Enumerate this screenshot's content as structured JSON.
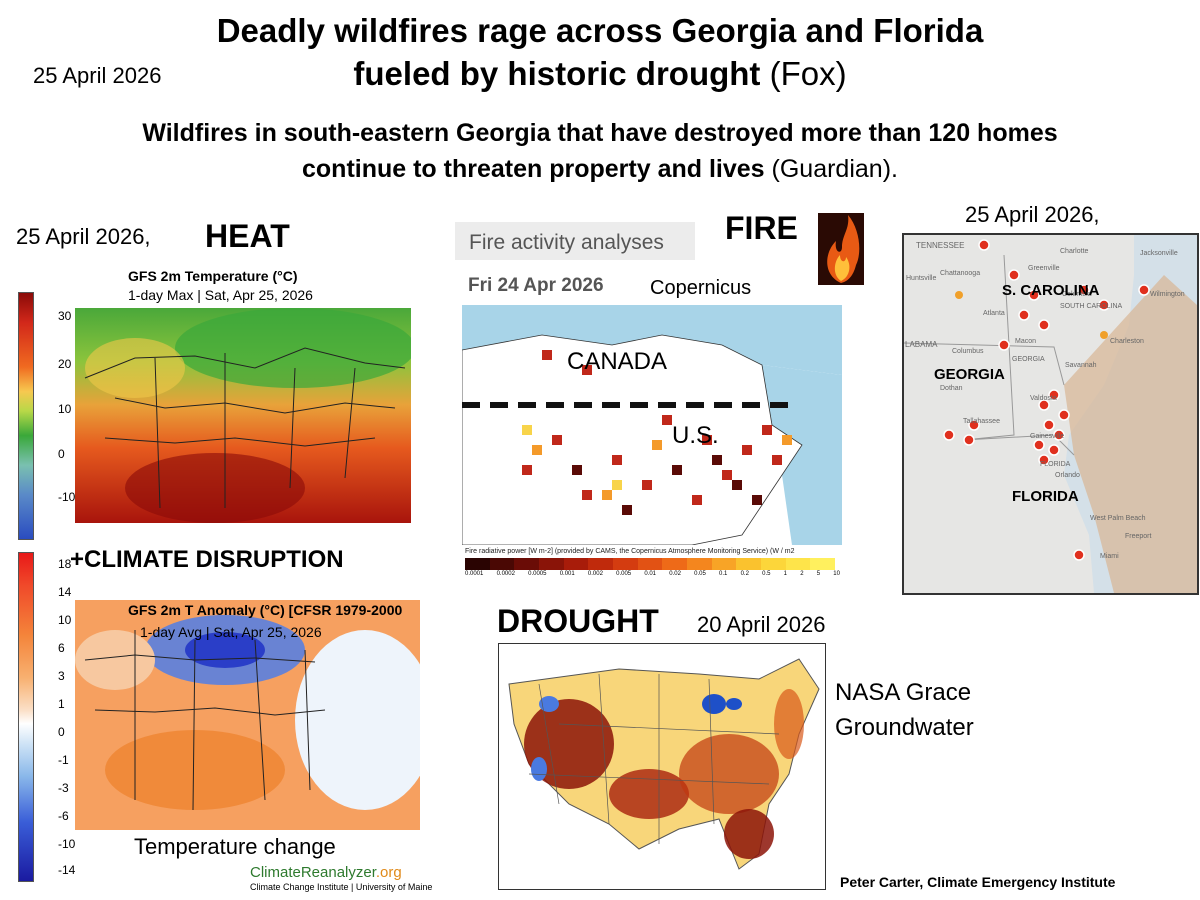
{
  "header": {
    "title_line1": "Deadly wildfires rage across Georgia and Florida",
    "title_line2": "fueled by historic drought",
    "title_source": "(Fox)",
    "date_top": "25 April 2026",
    "subtitle_line1": "Wildfires in south-eastern Georgia that have destroyed more than 120 homes",
    "subtitle_line2": "continue to threaten property and lives",
    "subtitle_source": "(Guardian)."
  },
  "heat_panel": {
    "date": "25 April 2026,",
    "label": "HEAT",
    "map_title": "GFS 2m Temperature (°C)",
    "map_subtitle": "1-day Max | Sat, Apr 25, 2026",
    "colorbar_ticks": [
      "30",
      "20",
      "10",
      "0",
      "-10"
    ]
  },
  "anomaly_panel": {
    "label": "+CLIMATE DISRUPTION",
    "map_title": "GFS 2m T Anomaly (°C) [CFSR 1979-2000",
    "map_subtitle": "1-day Avg | Sat, Apr 25, 2026",
    "colorbar_ticks": [
      "18",
      "14",
      "10",
      "6",
      "3",
      "1",
      "0",
      "-1",
      "-3",
      "-6",
      "-10",
      "-14"
    ],
    "caption": "Temperature change",
    "credit_brand": "ClimateReanalyzer",
    "credit_tld": ".org",
    "credit_institute": "Climate Change Institute | University of Maine"
  },
  "fire_panel": {
    "analysis_title": "Fire activity analyses",
    "label": "FIRE",
    "date": "Fri 24 Apr 2026",
    "source": "Copernicus",
    "canada_label": "CANADA",
    "us_label": "U.S.",
    "legend_title": "Fire radiative power [W m-2] (provided by CAMS, the Copernicus Atmosphere Monitoring Service) (W / m2",
    "legend_ticks": [
      "0.0001",
      "0.0002",
      "0.0005",
      "0.001",
      "0.002",
      "0.005",
      "0.01",
      "0.02",
      "0.05",
      "0.1",
      "0.2",
      "0.5",
      "1",
      "2",
      "5",
      "10"
    ]
  },
  "southeast_panel": {
    "date": "25 April 2026,",
    "state_labels": [
      "S. CAROLINA",
      "GEORGIA",
      "FLORIDA"
    ],
    "place_labels": [
      "TENNESSEE",
      "Huntsville",
      "Chattanooga",
      "Greenville",
      "Charlotte",
      "Columbia",
      "Atlanta",
      "SOUTH CAROLINA",
      "Wilmington",
      "Charleston",
      "LABAMA",
      "Columbus",
      "Macon",
      "Savannah",
      "Dothan",
      "Tallahassee",
      "Valdosta",
      "Jacksonville",
      "Gainesville",
      "West Palm Beach",
      "Miami",
      "Freeport",
      "Orlando",
      "GEORGIA",
      "FLORIDA"
    ]
  },
  "drought_panel": {
    "label": "DROUGHT",
    "date": "20 April 2026",
    "source_line1": "NASA Grace",
    "source_line2": "Groundwater"
  },
  "footer": {
    "author": "Peter Carter, Climate Emergency Institute"
  },
  "colors": {
    "heat_hot": "#a8140c",
    "heat_warm": "#e8541a",
    "heat_mild": "#9bc33a",
    "anomaly_warm": "#f2883c",
    "anomaly_cold": "#3a5ed8",
    "fire_low": "#3a0804",
    "fire_high": "#ffd24a",
    "drought_dry": "#8c1408",
    "drought_wet": "#1e50c8",
    "smoke": "#d8b89a"
  }
}
